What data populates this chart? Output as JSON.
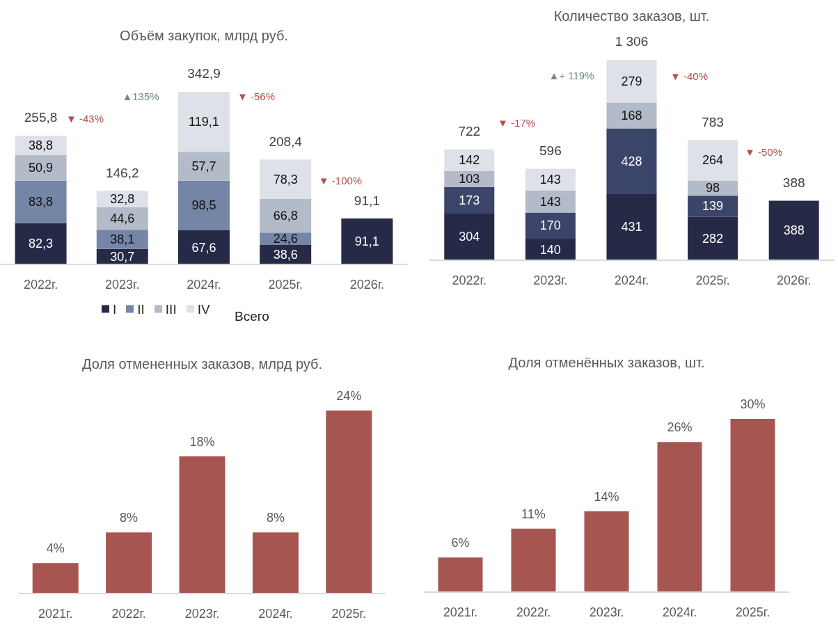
{
  "chart_data": [
    {
      "type": "bar",
      "title": "Объём закупок, млрд руб.",
      "categories": [
        "2022г.",
        "2023г.",
        "2024г.",
        "2025г.",
        "2026г."
      ],
      "stacked": true,
      "series": [
        {
          "name": "I",
          "color": "#262a47",
          "values": [
            82.3,
            30.7,
            67.6,
            38.6,
            91.1
          ],
          "value_labels": [
            "82,3",
            "30,7",
            "67,6",
            "38,6",
            "91,1"
          ]
        },
        {
          "name": "II",
          "color": "#7585a6",
          "values": [
            83.8,
            38.1,
            98.5,
            24.6,
            null
          ],
          "value_labels": [
            "83,8",
            "38,1",
            "98,5",
            "24,6",
            null
          ]
        },
        {
          "name": "III",
          "color": "#b3bac8",
          "values": [
            50.9,
            44.6,
            57.7,
            66.8,
            null
          ],
          "value_labels": [
            "50,9",
            "44,6",
            "57,7",
            "66,8",
            null
          ]
        },
        {
          "name": "IV",
          "color": "#dee1e7",
          "values": [
            38.8,
            32.8,
            119.1,
            78.3,
            null
          ],
          "value_labels": [
            "38,8",
            "32,8",
            "119,1",
            "78,3",
            null
          ]
        }
      ],
      "totals": [
        "255,8",
        "146,2",
        "342,9",
        "208,4",
        "91,1"
      ],
      "annotations": [
        "▼ -43%",
        "▲135%",
        "▼ -56%",
        "▼ -100%",
        "Всего"
      ],
      "legend": "bottom"
    },
    {
      "type": "bar",
      "title": "Количество заказов, шт.",
      "categories": [
        "2022г.",
        "2023г.",
        "2024г.",
        "2025г.",
        "2026г."
      ],
      "stacked": true,
      "series": [
        {
          "color": "#262a47",
          "values": [
            304,
            140,
            431,
            282,
            388
          ],
          "value_labels": [
            "304",
            "140",
            "431",
            "282",
            "388"
          ]
        },
        {
          "color": "#3b4469",
          "values": [
            173,
            170,
            428,
            139,
            null
          ],
          "value_labels": [
            "173",
            "170",
            "428",
            "139",
            null
          ]
        },
        {
          "color": "#b3bac8",
          "values": [
            103,
            143,
            168,
            98,
            null
          ],
          "value_labels": [
            "103",
            "143",
            "168",
            "98",
            null
          ]
        },
        {
          "color": "#dee1e7",
          "values": [
            142,
            143,
            279,
            264,
            null
          ],
          "value_labels": [
            "142",
            "143",
            "279",
            "264",
            null
          ]
        }
      ],
      "totals": [
        "722",
        "596",
        "1 306",
        "783",
        "388"
      ],
      "annotations": [
        "▼ -17%",
        "▲+ 119%",
        "▼ -40%",
        "▼ -50%"
      ]
    },
    {
      "type": "bar",
      "title": "Доля отмененных заказов, млрд руб.",
      "categories": [
        "2021г.",
        "2022г.",
        "2023г.",
        "2024г.",
        "2025г."
      ],
      "values": [
        4,
        8,
        18,
        8,
        24
      ],
      "color": "#a65550",
      "value_labels": [
        "4%",
        "8%",
        "18%",
        "8%",
        "24%"
      ]
    },
    {
      "type": "bar",
      "title": "Доля отменённых заказов, шт.",
      "categories": [
        "2021г.",
        "2022г.",
        "2023г.",
        "2024г.",
        "2025г."
      ],
      "values": [
        6,
        11,
        14,
        26,
        30
      ],
      "color": "#a65550",
      "value_labels": [
        "6%",
        "11%",
        "14%",
        "26%",
        "30%"
      ]
    }
  ]
}
